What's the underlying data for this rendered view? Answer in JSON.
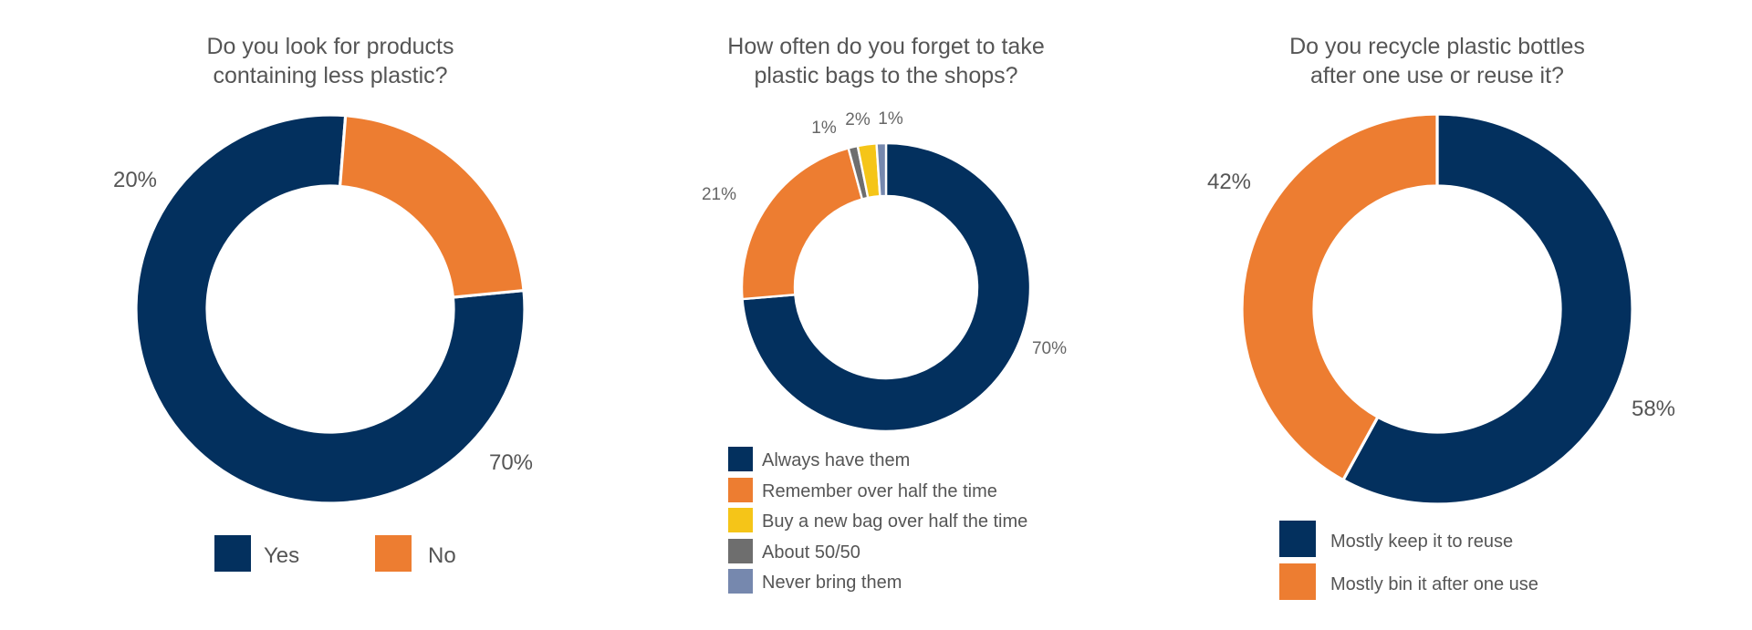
{
  "colors": {
    "navy": "#03305E",
    "orange": "#ED7D31",
    "yellow": "#F5C518",
    "gray": "#6E6E6E",
    "slate": "#7688AE"
  },
  "chart_data": [
    {
      "type": "pie",
      "title_lines": [
        "Do you look for products",
        "containing less plastic?"
      ],
      "slices": [
        {
          "label": "Yes",
          "value": 70,
          "color": "#03305E",
          "display": "70%"
        },
        {
          "label": "No",
          "value": 20,
          "color": "#ED7D31",
          "display": "20%"
        }
      ],
      "legend": [
        "Yes",
        "No"
      ]
    },
    {
      "type": "pie",
      "title_lines": [
        "How often do you forget to take",
        "plastic bags to the shops?"
      ],
      "slices": [
        {
          "label": "Always have them",
          "value": 70,
          "color": "#03305E",
          "display": "70%"
        },
        {
          "label": "Remember over half the time",
          "value": 21,
          "color": "#ED7D31",
          "display": "21%"
        },
        {
          "label": "About 50/50",
          "value": 1,
          "color": "#6E6E6E",
          "display": "1%"
        },
        {
          "label": "Buy a new bag over half the time",
          "value": 2,
          "color": "#F5C518",
          "display": "2%"
        },
        {
          "label": "Never bring them",
          "value": 1,
          "color": "#7688AE",
          "display": "1%"
        }
      ],
      "legend": [
        "Always have them",
        "Remember over half the time",
        "Buy a new bag over half the time",
        "About 50/50",
        "Never bring them"
      ]
    },
    {
      "type": "pie",
      "title_lines": [
        "Do you recycle plastic bottles",
        "after one use or reuse it?"
      ],
      "slices": [
        {
          "label": "Mostly keep it to reuse",
          "value": 58,
          "color": "#03305E",
          "display": "58%"
        },
        {
          "label": "Mostly bin it after one use",
          "value": 42,
          "color": "#ED7D31",
          "display": "42%"
        }
      ],
      "legend": [
        "Mostly keep it to reuse",
        "Mostly bin it after one use"
      ]
    }
  ]
}
